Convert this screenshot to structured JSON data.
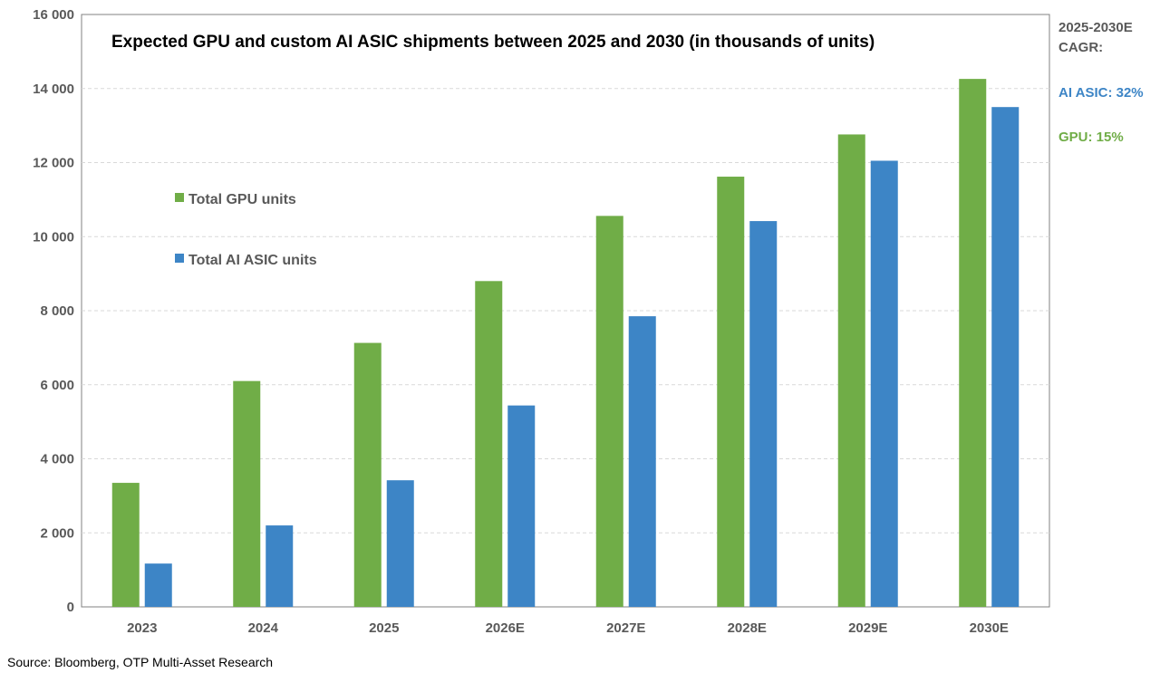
{
  "chart_data": {
    "type": "bar",
    "title": "Expected GPU and custom AI ASIC shipments between 2025 and 2030 (in thousands of units)",
    "categories": [
      "2023",
      "2024",
      "2025",
      "2026E",
      "2027E",
      "2028E",
      "2029E",
      "2030E"
    ],
    "series": [
      {
        "name": "Total GPU units",
        "color": "#70ad47",
        "values": [
          3350,
          6100,
          7130,
          8800,
          10560,
          11620,
          12760,
          14260
        ]
      },
      {
        "name": "Total AI ASIC units",
        "color": "#3d85c6",
        "values": [
          1170,
          2200,
          3420,
          5440,
          7850,
          10420,
          12050,
          13500
        ]
      }
    ],
    "ylim": [
      0,
      16000
    ],
    "yticks": [
      0,
      2000,
      4000,
      6000,
      8000,
      10000,
      12000,
      14000,
      16000
    ],
    "ytick_labels": [
      "0",
      "2 000",
      "4 000",
      "6 000",
      "8 000",
      "10 000",
      "12 000",
      "14 000",
      "16 000"
    ],
    "xlabel": "",
    "ylabel": "",
    "grid": true,
    "legend_position": "left-inside"
  },
  "cagr_box": {
    "heading_line1": "2025-2030E",
    "heading_line2": "CAGR:",
    "asic_label": "AI ASIC: 32%",
    "gpu_label": "GPU: 15%",
    "asic_color": "#3d85c6",
    "gpu_color": "#70ad47"
  },
  "source": "Source: Bloomberg, OTP Multi-Asset Research"
}
